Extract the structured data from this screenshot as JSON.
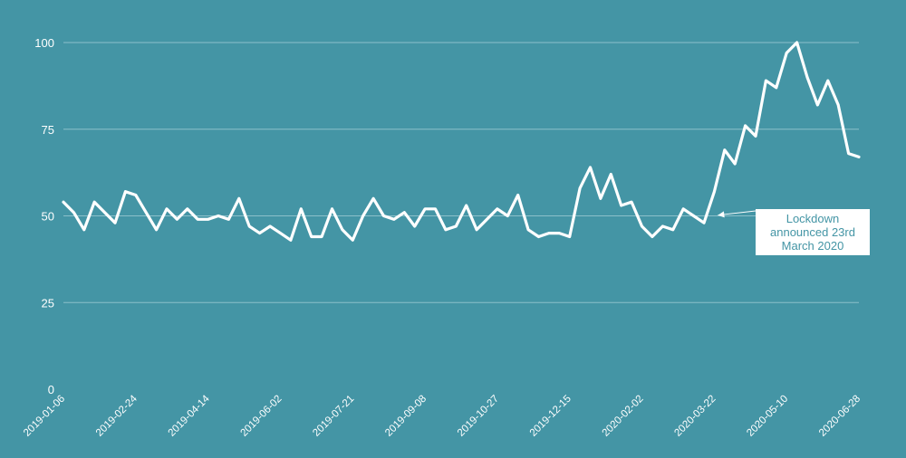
{
  "chart_data": {
    "type": "line",
    "title": "",
    "xlabel": "",
    "ylabel": "",
    "ylim": [
      0,
      100
    ],
    "yticks": [
      0,
      25,
      50,
      75,
      100
    ],
    "grid": true,
    "x_tick_labels": [
      "2019-01-06",
      "2019-02-24",
      "2019-04-14",
      "2019-06-02",
      "2019-07-21",
      "2019-09-08",
      "2019-10-27",
      "2019-12-15",
      "2020-02-02",
      "2020-03-22",
      "2020-05-10",
      "2020-06-28"
    ],
    "x": [
      "2019-01-06",
      "2019-01-13",
      "2019-01-20",
      "2019-01-27",
      "2019-02-03",
      "2019-02-10",
      "2019-02-17",
      "2019-02-24",
      "2019-03-03",
      "2019-03-10",
      "2019-03-17",
      "2019-03-24",
      "2019-03-31",
      "2019-04-07",
      "2019-04-14",
      "2019-04-21",
      "2019-04-28",
      "2019-05-05",
      "2019-05-12",
      "2019-05-19",
      "2019-05-26",
      "2019-06-02",
      "2019-06-09",
      "2019-06-16",
      "2019-06-23",
      "2019-06-30",
      "2019-07-07",
      "2019-07-14",
      "2019-07-21",
      "2019-07-28",
      "2019-08-04",
      "2019-08-11",
      "2019-08-18",
      "2019-08-25",
      "2019-09-01",
      "2019-09-08",
      "2019-09-15",
      "2019-09-22",
      "2019-09-29",
      "2019-10-06",
      "2019-10-13",
      "2019-10-20",
      "2019-10-27",
      "2019-11-03",
      "2019-11-10",
      "2019-11-17",
      "2019-11-24",
      "2019-12-01",
      "2019-12-08",
      "2019-12-15",
      "2019-12-22",
      "2019-12-29",
      "2020-01-05",
      "2020-01-12",
      "2020-01-19",
      "2020-01-26",
      "2020-02-02",
      "2020-02-09",
      "2020-02-16",
      "2020-02-23",
      "2020-03-01",
      "2020-03-08",
      "2020-03-15",
      "2020-03-22",
      "2020-03-29",
      "2020-04-05",
      "2020-04-12",
      "2020-04-19",
      "2020-04-26",
      "2020-05-03",
      "2020-05-10",
      "2020-05-17",
      "2020-05-24",
      "2020-05-31",
      "2020-06-07",
      "2020-06-14",
      "2020-06-21",
      "2020-06-28"
    ],
    "series": [
      {
        "values": [
          54,
          51,
          46,
          54,
          51,
          48,
          57,
          56,
          51,
          46,
          52,
          49,
          52,
          49,
          49,
          50,
          49,
          55,
          47,
          45,
          47,
          45,
          43,
          52,
          44,
          44,
          52,
          46,
          43,
          50,
          55,
          50,
          49,
          51,
          47,
          52,
          52,
          46,
          47,
          53,
          46,
          49,
          52,
          50,
          56,
          46,
          44,
          45,
          45,
          44,
          58,
          64,
          55,
          62,
          53,
          54,
          47,
          44,
          47,
          46,
          52,
          50,
          48,
          57,
          69,
          65,
          76,
          73,
          89,
          87,
          97,
          100,
          90,
          82,
          89,
          82,
          68,
          67
        ]
      }
    ],
    "annotation": {
      "lines": [
        "Lockdown",
        "announced 23rd",
        "March 2020"
      ],
      "points_to": "2020-03-22"
    },
    "colors": {
      "background": "#4495a5",
      "line": "#ffffff",
      "grid": "#8cc0ca",
      "annotation_text": "#4495a5"
    }
  }
}
